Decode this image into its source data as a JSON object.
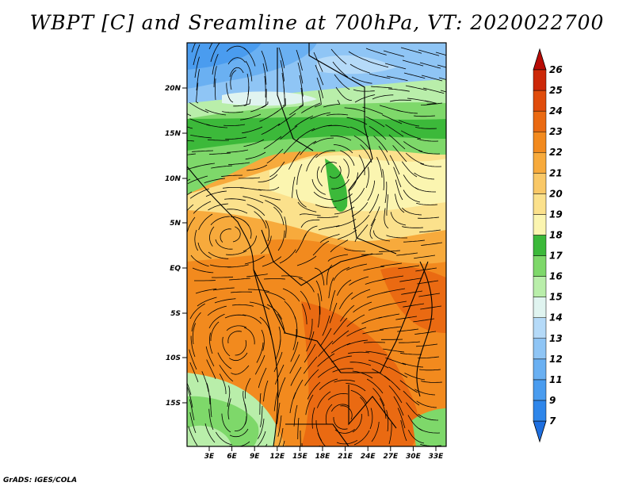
{
  "title": "WBPT [C] and Sreamline at 700hPa, VT: 2020022700",
  "credit": "GrADS: IGES/COLA",
  "map": {
    "lat_labels": [
      "20N",
      "15N",
      "10N",
      "5N",
      "EQ",
      "5S",
      "10S",
      "15S"
    ],
    "lon_labels": [
      "3E",
      "6E",
      "9E",
      "12E",
      "15E",
      "18E",
      "21E",
      "24E",
      "27E",
      "30E",
      "33E"
    ]
  },
  "colorbar": {
    "levels": [
      "7",
      "9",
      "11",
      "12",
      "13",
      "14",
      "15",
      "16",
      "17",
      "18",
      "19",
      "20",
      "21",
      "22",
      "23",
      "24",
      "25",
      "26"
    ],
    "colors": [
      "#1e6fe0",
      "#2f86ea",
      "#4a9cef",
      "#6ab0f2",
      "#8fc5f5",
      "#b5daf8",
      "#e0f4f0",
      "#b9eeaa",
      "#7ed86a",
      "#3cb93a",
      "#fbf5b0",
      "#fbe18c",
      "#f9c867",
      "#f7aa3c",
      "#f28a1e",
      "#ea6a12",
      "#e04c0c",
      "#cc2808",
      "#b80c06"
    ]
  }
}
